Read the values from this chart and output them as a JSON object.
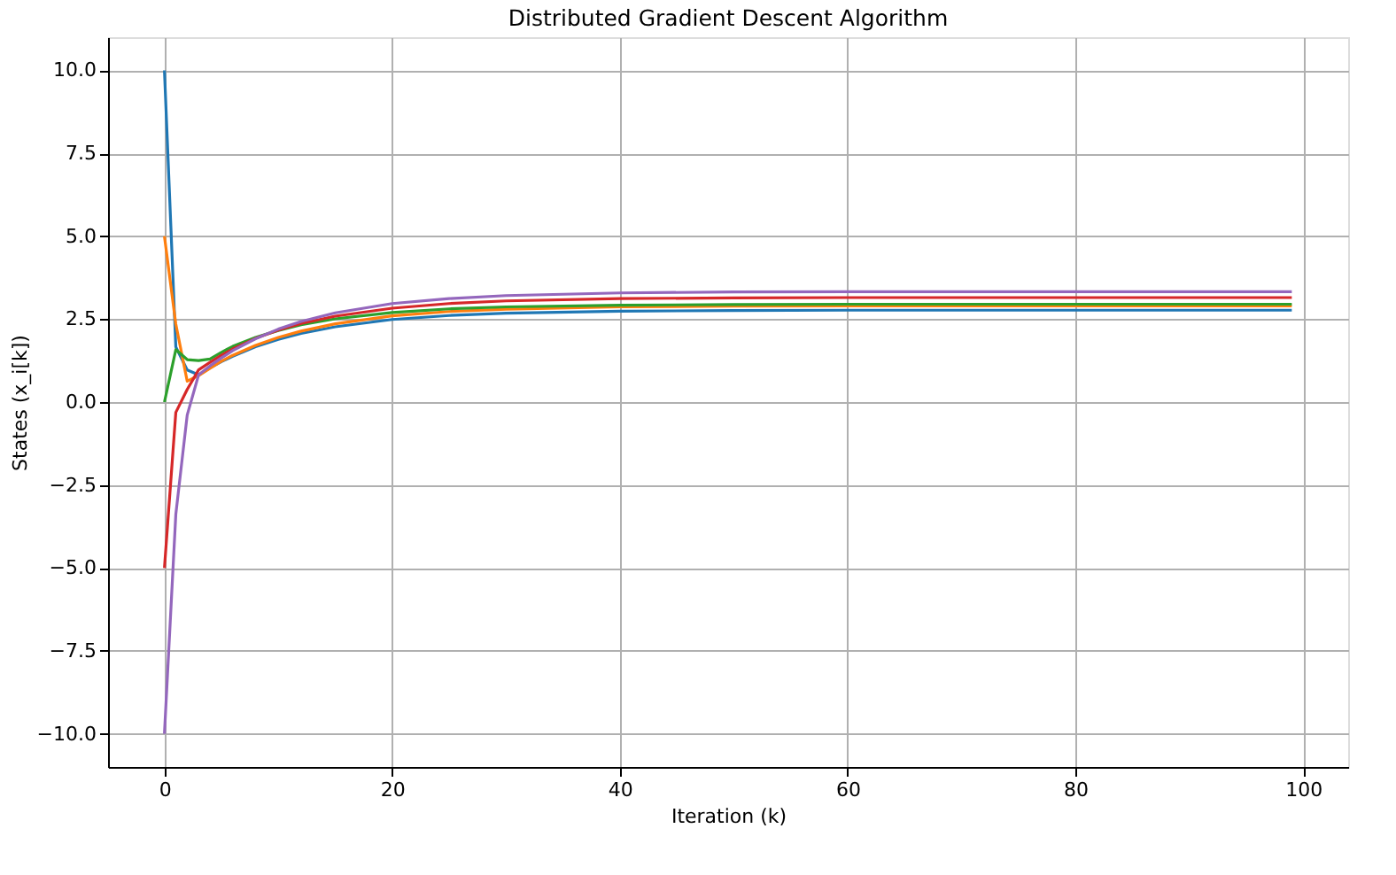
{
  "chart_data": {
    "type": "line",
    "title": "Distributed Gradient Descent Algorithm",
    "xlabel": "Iteration (k)",
    "ylabel": "States (x_i[k])",
    "x": [
      0,
      1,
      2,
      3,
      4,
      5,
      6,
      8,
      10,
      12,
      15,
      20,
      25,
      30,
      40,
      50,
      60,
      70,
      80,
      90,
      99
    ],
    "series": [
      {
        "color": "#1f77b4",
        "values": [
          10,
          1.66,
          0.97,
          0.82,
          1.03,
          1.22,
          1.38,
          1.67,
          1.89,
          2.07,
          2.27,
          2.49,
          2.61,
          2.68,
          2.74,
          2.76,
          2.77,
          2.77,
          2.77,
          2.77,
          2.77
        ]
      },
      {
        "color": "#ff7f0e",
        "values": [
          5,
          2.35,
          0.63,
          0.8,
          1.02,
          1.23,
          1.41,
          1.71,
          1.95,
          2.14,
          2.36,
          2.6,
          2.73,
          2.8,
          2.87,
          2.89,
          2.9,
          2.9,
          2.9,
          2.9,
          2.9
        ]
      },
      {
        "color": "#2ca02c",
        "values": [
          0,
          1.58,
          1.28,
          1.25,
          1.3,
          1.5,
          1.68,
          1.95,
          2.16,
          2.33,
          2.51,
          2.7,
          2.81,
          2.87,
          2.92,
          2.94,
          2.95,
          2.95,
          2.95,
          2.95,
          2.95
        ]
      },
      {
        "color": "#d62728",
        "values": [
          -5,
          -0.31,
          0.38,
          0.97,
          1.2,
          1.41,
          1.6,
          1.92,
          2.17,
          2.37,
          2.59,
          2.83,
          2.97,
          3.05,
          3.12,
          3.14,
          3.15,
          3.15,
          3.15,
          3.15,
          3.15
        ]
      },
      {
        "color": "#9467bd",
        "values": [
          -10,
          -3.38,
          -0.39,
          0.82,
          1.09,
          1.33,
          1.55,
          1.91,
          2.2,
          2.43,
          2.69,
          2.97,
          3.12,
          3.21,
          3.29,
          3.32,
          3.33,
          3.33,
          3.33,
          3.33,
          3.33
        ]
      }
    ],
    "xlim": [
      -4.95,
      103.95
    ],
    "xticks": [
      0,
      20,
      40,
      60,
      80,
      100
    ],
    "ylim": [
      -11,
      11
    ],
    "yticks": [
      {
        "value": -10,
        "label": "−10.0"
      },
      {
        "value": -7.5,
        "label": "−7.5"
      },
      {
        "value": -5,
        "label": "−5.0"
      },
      {
        "value": -2.5,
        "label": "−2.5"
      },
      {
        "value": 0,
        "label": "0.0"
      },
      {
        "value": 2.5,
        "label": "2.5"
      },
      {
        "value": 5,
        "label": "5.0"
      },
      {
        "value": 7.5,
        "label": "7.5"
      },
      {
        "value": 10,
        "label": "10.0"
      }
    ],
    "grid": true,
    "marker": "none",
    "line_style": "solid"
  }
}
